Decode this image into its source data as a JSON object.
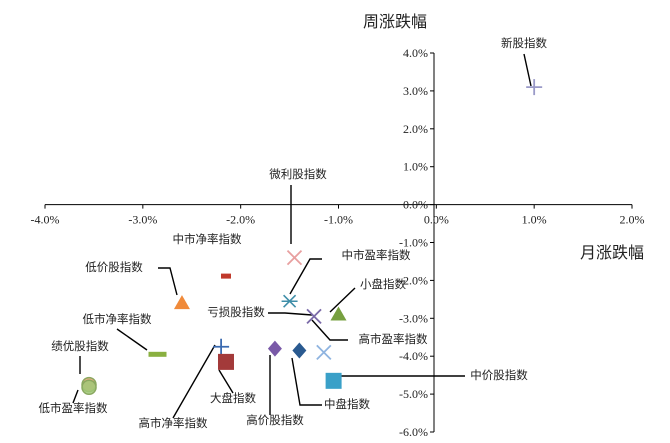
{
  "chart_data": {
    "type": "scatter",
    "xlabel": "月涨跌幅",
    "ylabel": "周涨跌幅",
    "xlim": [
      -4.0,
      2.0
    ],
    "ylim": [
      -6.0,
      4.0
    ],
    "x_ticks": [
      "-4.0%",
      "-3.0%",
      "-2.0%",
      "-1.0%",
      "0.0%",
      "1.0%",
      "2.0%"
    ],
    "y_ticks": [
      "4.0%",
      "3.0%",
      "2.0%",
      "1.0%",
      "0.0%",
      "-1.0%",
      "-2.0%",
      "-3.0%",
      "-4.0%",
      "-5.0%",
      "-6.0%"
    ],
    "grid": false,
    "points": [
      {
        "name": "新股指数",
        "x": 1.0,
        "y": 3.1,
        "marker": "plus",
        "color": "#9a9ac8"
      },
      {
        "name": "微利股指数",
        "x": -1.45,
        "y": -1.4,
        "marker": "x",
        "color": "#e8a0a0"
      },
      {
        "name": "中市净率指数",
        "x": -2.15,
        "y": -1.9,
        "marker": "rect",
        "color": "#c0392b"
      },
      {
        "name": "低价股指数",
        "x": -2.6,
        "y": -2.6,
        "marker": "triangle",
        "color": "#f08a3a"
      },
      {
        "name": "中市盈率指数",
        "x": -1.5,
        "y": -2.55,
        "marker": "star",
        "color": "#3f8ea8"
      },
      {
        "name": "小盘指数",
        "x": -1.0,
        "y": -2.9,
        "marker": "triangle",
        "color": "#77a040"
      },
      {
        "name": "亏损股指数",
        "x": -1.25,
        "y": -2.95,
        "marker": "x",
        "color": "#7a6aa8"
      },
      {
        "name": "高市盈率指数",
        "x": -1.15,
        "y": -3.9,
        "marker": "x",
        "color": "#8fb4e0"
      },
      {
        "name": "低市净率指数",
        "x": -2.85,
        "y": -3.95,
        "marker": "dash",
        "color": "#8ab040"
      },
      {
        "name": "高市净率指数",
        "x": -2.2,
        "y": -3.75,
        "marker": "plus",
        "color": "#3a6ab0"
      },
      {
        "name": "大盘指数",
        "x": -2.15,
        "y": -4.15,
        "marker": "square",
        "color": "#a33a3a"
      },
      {
        "name": "高价股指数",
        "x": -1.65,
        "y": -3.8,
        "marker": "diamond",
        "color": "#7a5aa8"
      },
      {
        "name": "中盘指数",
        "x": -1.4,
        "y": -3.85,
        "marker": "diamond",
        "color": "#2a5a90"
      },
      {
        "name": "中价股指数",
        "x": -1.05,
        "y": -4.65,
        "marker": "square",
        "color": "#3aa0c8"
      },
      {
        "name": "绩优股指数",
        "x": -3.55,
        "y": -4.75,
        "marker": "circle",
        "color": "#e8a070"
      },
      {
        "name": "低市盈率指数",
        "x": -3.55,
        "y": -4.82,
        "marker": "circle",
        "color": "#a0c878"
      }
    ]
  }
}
